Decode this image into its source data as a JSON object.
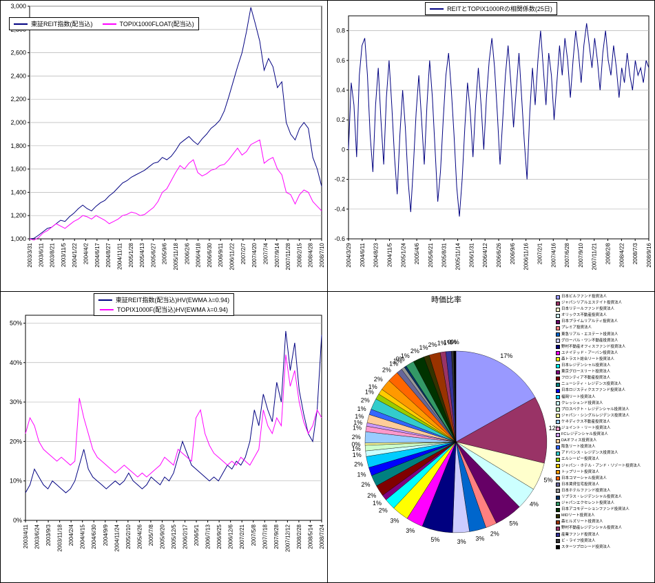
{
  "chart_data": [
    {
      "type": "line",
      "title": "",
      "legend_position": "top-left",
      "grid": true,
      "ylim": [
        1000,
        3000
      ],
      "ytick_values": [
        1000,
        1200,
        1400,
        1600,
        1800,
        2000,
        2200,
        2400,
        2600,
        2800,
        3000
      ],
      "ytick_labels": [
        "1,000",
        "1,200",
        "1,400",
        "1,600",
        "1,800",
        "2,000",
        "2,200",
        "2,400",
        "2,600",
        "2,800",
        "3,000"
      ],
      "x_labels": [
        "2003/3/31",
        "2003/6/11",
        "2003/8/21",
        "2003/11/5",
        "2004/1/22",
        "2004/4/2",
        "2004/6/17",
        "2004/8/27",
        "2004/11/11",
        "2005/1/28",
        "2005/4/13",
        "2005/6/27",
        "2005/9/6",
        "2005/11/18",
        "2006/2/6",
        "2006/4/18",
        "2006/6/30",
        "2006/9/11",
        "2006/11/22",
        "2007/2/7",
        "2007/4/20",
        "2007/7/4",
        "2007/9/14",
        "2007/11/28",
        "2008/2/15",
        "2008/4/28",
        "2008/7/10"
      ],
      "series": [
        {
          "name": "東証REIT指数(配当込)",
          "color": "#000080",
          "values": [
            1000,
            1005,
            1030,
            1060,
            1090,
            1100,
            1130,
            1160,
            1150,
            1190,
            1220,
            1260,
            1290,
            1260,
            1240,
            1280,
            1310,
            1330,
            1370,
            1400,
            1440,
            1480,
            1500,
            1530,
            1550,
            1570,
            1590,
            1620,
            1650,
            1660,
            1700,
            1680,
            1710,
            1760,
            1820,
            1850,
            1880,
            1840,
            1810,
            1860,
            1900,
            1950,
            1980,
            2020,
            2100,
            2220,
            2350,
            2480,
            2600,
            2780,
            2990,
            2850,
            2700,
            2450,
            2550,
            2480,
            2300,
            2350,
            2000,
            1900,
            1850,
            1950,
            2000,
            1950,
            1700,
            1600,
            1450
          ]
        },
        {
          "name": "TOPIX1000FLOAT(配当込)",
          "color": "#FF00FF",
          "values": [
            1000,
            990,
            1010,
            1050,
            1070,
            1100,
            1130,
            1110,
            1090,
            1120,
            1150,
            1170,
            1200,
            1190,
            1170,
            1200,
            1180,
            1160,
            1130,
            1150,
            1170,
            1200,
            1210,
            1230,
            1220,
            1200,
            1210,
            1240,
            1270,
            1320,
            1400,
            1430,
            1500,
            1570,
            1630,
            1600,
            1650,
            1680,
            1570,
            1540,
            1560,
            1590,
            1600,
            1630,
            1640,
            1680,
            1730,
            1780,
            1720,
            1750,
            1810,
            1830,
            1850,
            1650,
            1680,
            1700,
            1600,
            1550,
            1400,
            1380,
            1300,
            1380,
            1420,
            1400,
            1320,
            1280,
            1240
          ]
        }
      ]
    },
    {
      "type": "line",
      "title": "REITとTOPIX1000Rの相関係数(25日)",
      "legend_position": "top-center",
      "grid": true,
      "ylim": [
        -0.6,
        0.9
      ],
      "ytick_values": [
        -0.6,
        -0.4,
        -0.2,
        0,
        0.2,
        0.4,
        0.6,
        0.8
      ],
      "ytick_labels": [
        "-0.6",
        "-0.4",
        "-0.2",
        "0",
        "0.2",
        "0.4",
        "0.6",
        "0.8"
      ],
      "x_labels": [
        "2004/3/29",
        "2004/6/11",
        "2004/8/23",
        "2004/11/5",
        "2005/1/24",
        "2005/4/6",
        "2005/6/21",
        "2005/8/31",
        "2005/11/14",
        "2006/1/31",
        "2006/4/12",
        "2006/6/26",
        "2006/9/6",
        "2006/11/16",
        "2007/2/1",
        "2007/4/16",
        "2007/6/28",
        "2007/9/10",
        "2007/11/21",
        "2008/2/8",
        "2008/4/22",
        "2008/7/3",
        "2008/9/16"
      ],
      "series": [
        {
          "name": "REITとTOPIX1000Rの相関係数(25日)",
          "color": "#000080",
          "values": [
            0.0,
            0.45,
            0.3,
            -0.05,
            0.5,
            0.7,
            0.75,
            0.5,
            0.1,
            -0.15,
            0.3,
            0.55,
            0.2,
            -0.1,
            0.35,
            0.6,
            0.3,
            -0.05,
            -0.3,
            0.1,
            0.4,
            0.15,
            -0.2,
            -0.42,
            -0.1,
            0.25,
            0.5,
            0.2,
            -0.1,
            0.3,
            0.6,
            0.35,
            0.0,
            -0.35,
            -0.15,
            0.2,
            0.5,
            0.65,
            0.4,
            0.1,
            -0.25,
            -0.45,
            -0.2,
            0.15,
            0.45,
            0.25,
            -0.05,
            0.3,
            0.55,
            0.3,
            0.0,
            0.35,
            0.6,
            0.75,
            0.55,
            0.25,
            -0.1,
            0.2,
            0.5,
            0.7,
            0.45,
            0.15,
            0.4,
            0.65,
            0.35,
            0.05,
            -0.2,
            0.25,
            0.55,
            0.3,
            0.6,
            0.8,
            0.55,
            0.3,
            0.65,
            0.5,
            0.2,
            0.45,
            0.7,
            0.5,
            0.75,
            0.6,
            0.35,
            0.6,
            0.8,
            0.65,
            0.45,
            0.7,
            0.85,
            0.7,
            0.55,
            0.75,
            0.6,
            0.4,
            0.65,
            0.8,
            0.6,
            0.5,
            0.7,
            0.55,
            0.35,
            0.55,
            0.45,
            0.65,
            0.5,
            0.4,
            0.6,
            0.5,
            0.55,
            0.45,
            0.6,
            0.55
          ]
        }
      ]
    },
    {
      "type": "line",
      "title": "",
      "legend_position": "top-center",
      "grid": true,
      "ylim": [
        0,
        52
      ],
      "ytick_values": [
        0,
        10,
        20,
        30,
        40,
        50
      ],
      "ytick_labels": [
        "0%",
        "10%",
        "20%",
        "30%",
        "40%",
        "50%"
      ],
      "x_labels": [
        "2003/4/11",
        "2003/6/24",
        "2003/9/3",
        "2003/11/18",
        "2004/2/4",
        "2004/4/15",
        "2004/6/30",
        "2004/9/9",
        "2004/11/24",
        "2005/2/10",
        "2005/4/26",
        "2005/7/8",
        "2005/9/20",
        "2005/12/5",
        "2006/2/17",
        "2006/5/1",
        "2006/7/13",
        "2006/9/25",
        "2006/12/6",
        "2007/2/21",
        "2007/5/8",
        "2007/7/18",
        "2007/9/28",
        "2007/12/12",
        "2008/2/28",
        "2008/5/14",
        "2008/7/24"
      ],
      "series": [
        {
          "name": "東証REIT指数(配当込)HV(EWMA λ=0.94)",
          "color": "#000080",
          "values": [
            7,
            9,
            13,
            11,
            9,
            8,
            10,
            9,
            8,
            7,
            8,
            10,
            14,
            18,
            13,
            11,
            10,
            9,
            8,
            9,
            10,
            9,
            10,
            12,
            10,
            9,
            8,
            9,
            11,
            10,
            9,
            11,
            10,
            12,
            16,
            20,
            17,
            14,
            13,
            12,
            11,
            10,
            11,
            10,
            12,
            14,
            13,
            15,
            14,
            16,
            20,
            28,
            24,
            32,
            28,
            25,
            35,
            30,
            48,
            38,
            45,
            33,
            27,
            22,
            20,
            28,
            47
          ]
        },
        {
          "name": "TOPIX1000F(配当込)HV(EWMA λ=0.94)",
          "color": "#FF00FF",
          "values": [
            22,
            26,
            24,
            20,
            18,
            17,
            16,
            15,
            16,
            15,
            14,
            15,
            31,
            26,
            22,
            18,
            16,
            15,
            14,
            13,
            12,
            13,
            14,
            13,
            12,
            11,
            12,
            11,
            12,
            13,
            14,
            16,
            15,
            14,
            18,
            17,
            16,
            15,
            26,
            28,
            22,
            19,
            17,
            16,
            15,
            14,
            15,
            14,
            16,
            15,
            14,
            16,
            18,
            28,
            24,
            22,
            26,
            24,
            42,
            34,
            38,
            30,
            25,
            22,
            24,
            28,
            26
          ]
        }
      ]
    },
    {
      "type": "pie",
      "title": "時価比率",
      "legend_position": "right",
      "slices": [
        {
          "name": "日本ビルファンド投資法人",
          "value": 17,
          "color": "#9999FF"
        },
        {
          "name": "ジャパンリアルエステイト投資法人",
          "value": 12,
          "color": "#993366"
        },
        {
          "name": "日本リテールファンド投資法人",
          "value": 5,
          "color": "#FFFFCC"
        },
        {
          "name": "オリックス不動産投資法人",
          "value": 4,
          "color": "#CCFFFF"
        },
        {
          "name": "日本プライムリアルティ投資法人",
          "value": 5,
          "color": "#660066"
        },
        {
          "name": "プレミア投資法人",
          "value": 2,
          "color": "#FF8080"
        },
        {
          "name": "東急リアル・エステート投資法人",
          "value": 3,
          "color": "#0066CC"
        },
        {
          "name": "グローバル・ワン不動産投資法人",
          "value": 3,
          "color": "#CCCCFF"
        },
        {
          "name": "野村不動産オフィスファンド投資法人",
          "value": 5.5,
          "color": "#000080"
        },
        {
          "name": "ユナイテッド・アーバン投資法人",
          "value": 3,
          "color": "#FF00FF"
        },
        {
          "name": "森トラスト総合リート投資法人",
          "value": 3,
          "color": "#FFFF00"
        },
        {
          "name": "日本レジデンシャル投資法人",
          "value": 2,
          "color": "#00FFFF"
        },
        {
          "name": "東京グロースリート投資法人",
          "value": 1,
          "color": "#800080"
        },
        {
          "name": "フロンティア不動産投資法人",
          "value": 2,
          "color": "#800000"
        },
        {
          "name": "ニューシティ・レジデンス投資法人",
          "value": 2,
          "color": "#008080"
        },
        {
          "name": "日本ロジスティクスファンド投資法人",
          "value": 1.5,
          "color": "#0000FF"
        },
        {
          "name": "福岡リート投資法人",
          "value": 2,
          "color": "#00CCFF"
        },
        {
          "name": "クレッシェンド投資法人",
          "value": 1,
          "color": "#CCFFFF"
        },
        {
          "name": "プロスペクト・レジデンシャル投資法人",
          "value": 1,
          "color": "#CCFFCC"
        },
        {
          "name": "ジャパン・シングルレジデンス投資法人",
          "value": 0.4,
          "color": "#FFFF99"
        },
        {
          "name": "ケネディクス不動産投資法人",
          "value": 2,
          "color": "#99CCFF"
        },
        {
          "name": "ジョイント・リート投資法人",
          "value": 1,
          "color": "#FF99CC"
        },
        {
          "name": "FCレジデンシャル投資法人",
          "value": 0.6,
          "color": "#CC99FF"
        },
        {
          "name": "DAオフィス投資法人",
          "value": 1.5,
          "color": "#FFCC99"
        },
        {
          "name": "阪急リート投資法人",
          "value": 1,
          "color": "#3366FF"
        },
        {
          "name": "アドバンス・レジデンス投資法人",
          "value": 2,
          "color": "#33CCCC"
        },
        {
          "name": "エルシーピー投資法人",
          "value": 1,
          "color": "#99CC00"
        },
        {
          "name": "ジャパン・ホテル・アンド・リゾート投資法人",
          "value": 1,
          "color": "#FFCC00"
        },
        {
          "name": "トップリート投資法人",
          "value": 2,
          "color": "#FF9900"
        },
        {
          "name": "日本コマーシャル投資法人",
          "value": 2,
          "color": "#FF6600"
        },
        {
          "name": "日本賃貸住宅投資法人",
          "value": 1,
          "color": "#666699"
        },
        {
          "name": "日本ホテルファンド投資法人",
          "value": 0.6,
          "color": "#969696"
        },
        {
          "name": "リプラス・レジデンシャル投資法人",
          "value": 0.4,
          "color": "#003366"
        },
        {
          "name": "ジャパンエクセレント投資法人",
          "value": 1.5,
          "color": "#339966"
        },
        {
          "name": "日本アコモデーションファンド投資法人",
          "value": 2,
          "color": "#003300"
        },
        {
          "name": "MIDリート投資法人",
          "value": 1,
          "color": "#333300"
        },
        {
          "name": "森ヒルズリート投資法人",
          "value": 2,
          "color": "#993300"
        },
        {
          "name": "野村不動産レジデンシャル投資法人",
          "value": 1,
          "color": "#993366"
        },
        {
          "name": "産業ファンド投資法人",
          "value": 1,
          "color": "#333399"
        },
        {
          "name": "ビ・ライフ投資法人",
          "value": 0.4,
          "color": "#333333"
        },
        {
          "name": "スターツプロシード投資法人",
          "value": 0.4,
          "color": "#000000"
        }
      ]
    }
  ]
}
